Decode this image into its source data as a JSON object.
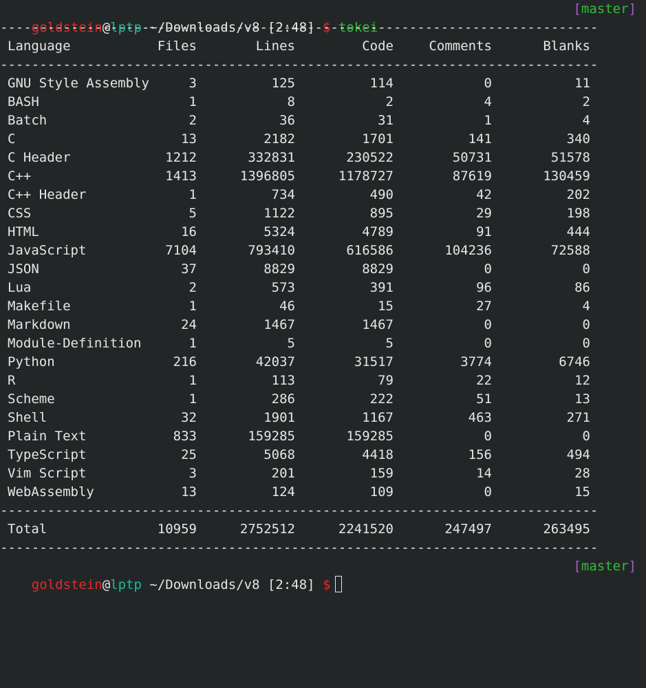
{
  "prompt": {
    "user": "goldstein",
    "at": "@",
    "host": "lptp",
    "path": " ~/Downloads/v8 [2:48] ",
    "dollar": "$",
    "command": "tokei",
    "branch_open": "[",
    "branch": "master",
    "branch_close": "]"
  },
  "rule": "--------------------------------------------------------------------------------------------------------------",
  "header": {
    "language": "Language",
    "files": "Files",
    "lines": "Lines",
    "code": "Code",
    "comments": "Comments",
    "blanks": "Blanks"
  },
  "rows": [
    {
      "language": "GNU Style Assembly",
      "files": "3",
      "lines": "125",
      "code": "114",
      "comments": "0",
      "blanks": "11"
    },
    {
      "language": "BASH",
      "files": "1",
      "lines": "8",
      "code": "2",
      "comments": "4",
      "blanks": "2"
    },
    {
      "language": "Batch",
      "files": "2",
      "lines": "36",
      "code": "31",
      "comments": "1",
      "blanks": "4"
    },
    {
      "language": "C",
      "files": "13",
      "lines": "2182",
      "code": "1701",
      "comments": "141",
      "blanks": "340"
    },
    {
      "language": "C Header",
      "files": "1212",
      "lines": "332831",
      "code": "230522",
      "comments": "50731",
      "blanks": "51578"
    },
    {
      "language": "C++",
      "files": "1413",
      "lines": "1396805",
      "code": "1178727",
      "comments": "87619",
      "blanks": "130459"
    },
    {
      "language": "C++ Header",
      "files": "1",
      "lines": "734",
      "code": "490",
      "comments": "42",
      "blanks": "202"
    },
    {
      "language": "CSS",
      "files": "5",
      "lines": "1122",
      "code": "895",
      "comments": "29",
      "blanks": "198"
    },
    {
      "language": "HTML",
      "files": "16",
      "lines": "5324",
      "code": "4789",
      "comments": "91",
      "blanks": "444"
    },
    {
      "language": "JavaScript",
      "files": "7104",
      "lines": "793410",
      "code": "616586",
      "comments": "104236",
      "blanks": "72588"
    },
    {
      "language": "JSON",
      "files": "37",
      "lines": "8829",
      "code": "8829",
      "comments": "0",
      "blanks": "0"
    },
    {
      "language": "Lua",
      "files": "2",
      "lines": "573",
      "code": "391",
      "comments": "96",
      "blanks": "86"
    },
    {
      "language": "Makefile",
      "files": "1",
      "lines": "46",
      "code": "15",
      "comments": "27",
      "blanks": "4"
    },
    {
      "language": "Markdown",
      "files": "24",
      "lines": "1467",
      "code": "1467",
      "comments": "0",
      "blanks": "0"
    },
    {
      "language": "Module-Definition",
      "files": "1",
      "lines": "5",
      "code": "5",
      "comments": "0",
      "blanks": "0"
    },
    {
      "language": "Python",
      "files": "216",
      "lines": "42037",
      "code": "31517",
      "comments": "3774",
      "blanks": "6746"
    },
    {
      "language": "R",
      "files": "1",
      "lines": "113",
      "code": "79",
      "comments": "22",
      "blanks": "12"
    },
    {
      "language": "Scheme",
      "files": "1",
      "lines": "286",
      "code": "222",
      "comments": "51",
      "blanks": "13"
    },
    {
      "language": "Shell",
      "files": "32",
      "lines": "1901",
      "code": "1167",
      "comments": "463",
      "blanks": "271"
    },
    {
      "language": "Plain Text",
      "files": "833",
      "lines": "159285",
      "code": "159285",
      "comments": "0",
      "blanks": "0"
    },
    {
      "language": "TypeScript",
      "files": "25",
      "lines": "5068",
      "code": "4418",
      "comments": "156",
      "blanks": "494"
    },
    {
      "language": "Vim Script",
      "files": "3",
      "lines": "201",
      "code": "159",
      "comments": "14",
      "blanks": "28"
    },
    {
      "language": "WebAssembly",
      "files": "13",
      "lines": "124",
      "code": "109",
      "comments": "0",
      "blanks": "15"
    }
  ],
  "total": {
    "language": "Total",
    "files": "10959",
    "lines": "2752512",
    "code": "2241520",
    "comments": "247497",
    "blanks": "263495"
  },
  "colors": {
    "background": "#232627",
    "user": "#e02d2d",
    "host": "#1abc9c",
    "command": "#2fbf3a",
    "branch_bracket": "#a55fc7",
    "branch_name": "#2fbf3a"
  }
}
